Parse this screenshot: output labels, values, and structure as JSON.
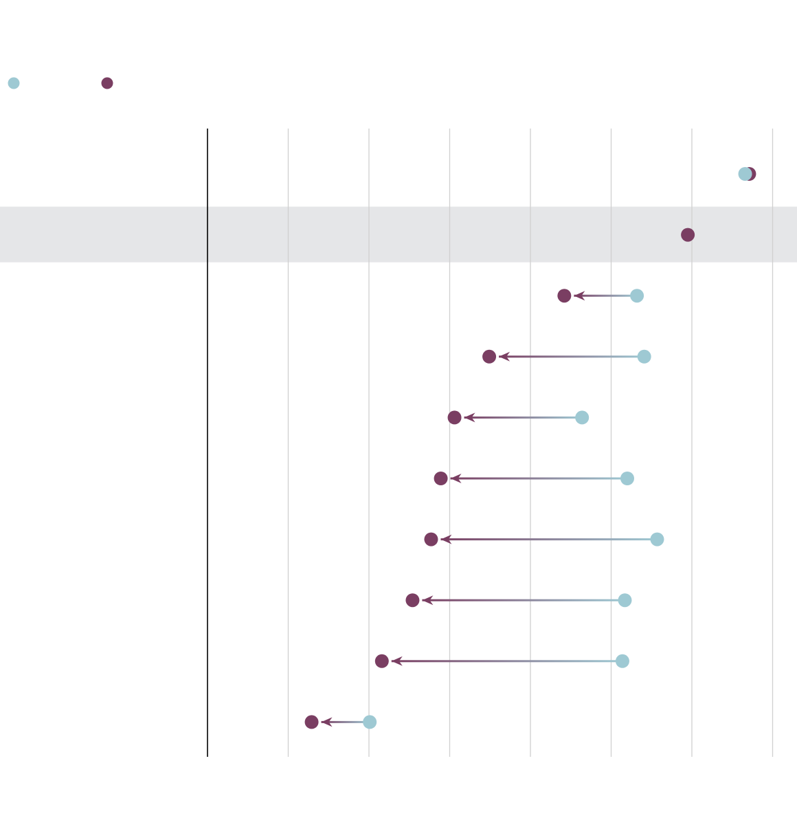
{
  "chart_data": {
    "type": "dumbbell",
    "title": "",
    "xlabel": "",
    "ylabel": "",
    "xlim": [
      0,
      70
    ],
    "grid_step": 10,
    "grid": true,
    "legend": {
      "placement": "top-left",
      "entries": [
        {
          "name": "",
          "color": "#9ec9d3"
        },
        {
          "name": "",
          "color": "#7a3e62"
        }
      ]
    },
    "highlighted_row": 1,
    "rows": [
      {
        "start": 66.6,
        "end": 67.1
      },
      {
        "start": null,
        "end": 59.5
      },
      {
        "start": 53.2,
        "end": 44.2
      },
      {
        "start": 54.1,
        "end": 34.9
      },
      {
        "start": 46.4,
        "end": 30.6
      },
      {
        "start": 52.0,
        "end": 28.9
      },
      {
        "start": 55.7,
        "end": 27.7
      },
      {
        "start": 51.7,
        "end": 25.4
      },
      {
        "start": 51.4,
        "end": 21.6
      },
      {
        "start": 20.1,
        "end": 12.9
      }
    ]
  },
  "colors": {
    "start": "#9ec9d3",
    "end": "#7a3e62",
    "highlight": "#e5e6e8",
    "grid": "#d0d0d0",
    "axis": "#000000"
  }
}
